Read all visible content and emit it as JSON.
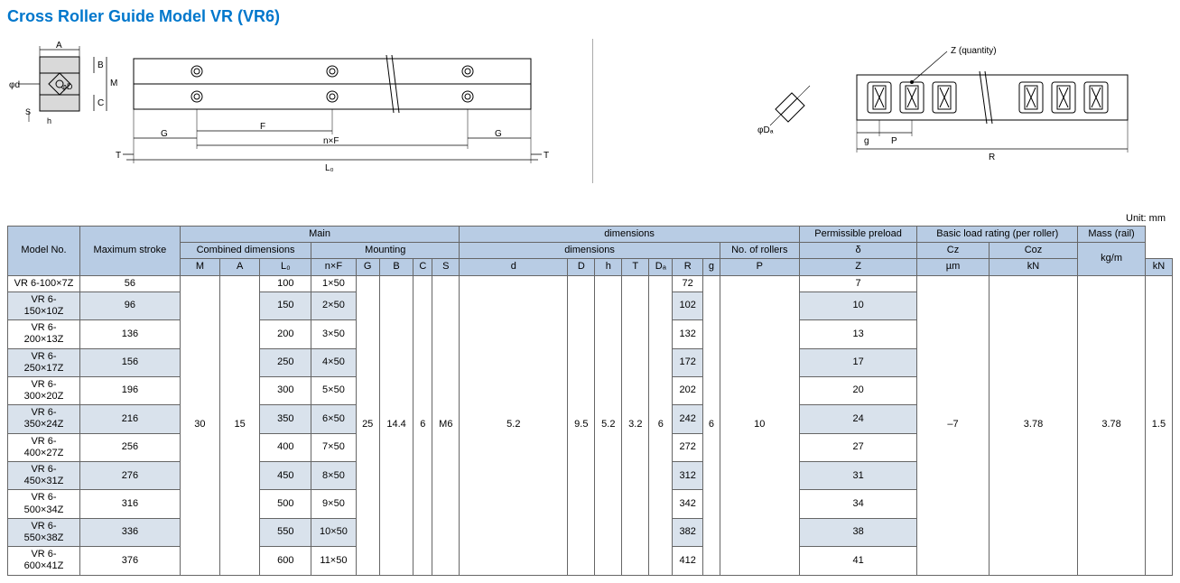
{
  "title": "Cross Roller Guide Model VR (VR6)",
  "unit_label": "Unit: mm",
  "diagram_labels": {
    "A": "A",
    "B": "B",
    "M": "M",
    "C": "C",
    "D": "D",
    "d": "d",
    "S": "S",
    "h": "h",
    "F": "F",
    "nF": "n×F",
    "G1": "G",
    "G2": "G",
    "L0": "L₀",
    "T1": "T",
    "T2": "T",
    "Z": "Z (quantity)",
    "Da": "Da",
    "phiDa": "φ",
    "g": "g",
    "P": "P",
    "R": "R",
    "phi_d": "φ"
  },
  "headers": {
    "model_no": "Model No.",
    "max_stroke": "Maximum stroke",
    "main": "Main",
    "dimensions": "dimensions",
    "combined_dim": "Combined dimensions",
    "mounting": "Mounting",
    "no_rollers": "No. of rollers",
    "perm_preload": "Permissible preload",
    "basic_load": "Basic load rating (per roller)",
    "mass": "Mass (rail)",
    "sub": {
      "M": "M",
      "A": "A",
      "L0": "L₀",
      "nF": "n×F",
      "G": "G",
      "B": "B",
      "C": "C",
      "S": "S",
      "d": "d",
      "D": "D",
      "h": "h",
      "T": "T",
      "Da": "Dₐ",
      "R": "R",
      "g": "g",
      "P": "P",
      "Z": "Z",
      "delta": "δ",
      "Cz": "Cz",
      "Coz": "Coz",
      "mass_unit": "kg/m",
      "um": "µm",
      "kN1": "kN",
      "kN2": "kN"
    }
  },
  "shared": {
    "M": "30",
    "A": "15",
    "G": "25",
    "B": "14.4",
    "C": "6",
    "S": "M6",
    "d": "5.2",
    "D": "9.5",
    "h": "5.2",
    "T": "3.2",
    "Da": "6",
    "g": "6",
    "P": "10",
    "delta": "–7",
    "Cz": "3.78",
    "Coz": "3.78",
    "mass": "1.5"
  },
  "rows": [
    {
      "model": "VR 6-100×7Z",
      "stroke": "56",
      "L0": "100",
      "nF": "1×50",
      "R": "72",
      "Z": "7"
    },
    {
      "model": "VR 6-150×10Z",
      "stroke": "96",
      "L0": "150",
      "nF": "2×50",
      "R": "102",
      "Z": "10"
    },
    {
      "model": "VR 6-200×13Z",
      "stroke": "136",
      "L0": "200",
      "nF": "3×50",
      "R": "132",
      "Z": "13"
    },
    {
      "model": "VR 6-250×17Z",
      "stroke": "156",
      "L0": "250",
      "nF": "4×50",
      "R": "172",
      "Z": "17"
    },
    {
      "model": "VR 6-300×20Z",
      "stroke": "196",
      "L0": "300",
      "nF": "5×50",
      "R": "202",
      "Z": "20"
    },
    {
      "model": "VR 6-350×24Z",
      "stroke": "216",
      "L0": "350",
      "nF": "6×50",
      "R": "242",
      "Z": "24"
    },
    {
      "model": "VR 6-400×27Z",
      "stroke": "256",
      "L0": "400",
      "nF": "7×50",
      "R": "272",
      "Z": "27"
    },
    {
      "model": "VR 6-450×31Z",
      "stroke": "276",
      "L0": "450",
      "nF": "8×50",
      "R": "312",
      "Z": "31"
    },
    {
      "model": "VR 6-500×34Z",
      "stroke": "316",
      "L0": "500",
      "nF": "9×50",
      "R": "342",
      "Z": "34"
    },
    {
      "model": "VR 6-550×38Z",
      "stroke": "336",
      "L0": "550",
      "nF": "10×50",
      "R": "382",
      "Z": "38"
    },
    {
      "model": "VR 6-600×41Z",
      "stroke": "376",
      "L0": "600",
      "nF": "11×50",
      "R": "412",
      "Z": "41"
    }
  ],
  "colors": {
    "header_bg": "#b8cce4",
    "shade_bg": "#d9e2ec",
    "title_color": "#0077cc",
    "border": "#666666"
  }
}
